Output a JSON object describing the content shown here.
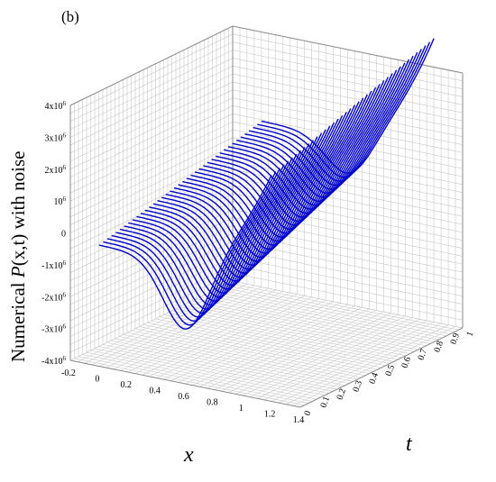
{
  "panel_label": "(b)",
  "chart_data": {
    "type": "surface3d",
    "title": "",
    "xlabel": "x",
    "ylabel": "t",
    "zlabel": "Numerical P(x,t) with noise",
    "zlabel_parts": {
      "prefix": "Numerical ",
      "func": "P",
      "args": "(x,t)",
      "suffix": " with noise"
    },
    "x_range": [
      -0.2,
      1.4
    ],
    "t_range": [
      0,
      1
    ],
    "z_range": [
      -4000000,
      4000000
    ],
    "x_ticks": [
      "-0.2",
      "0",
      "0.2",
      "0.4",
      "0.6",
      "0.8",
      "1",
      "1.2",
      "1.4"
    ],
    "t_ticks": [
      "0",
      "0.1",
      "0.2",
      "0.3",
      "0.4",
      "0.5",
      "0.6",
      "0.7",
      "0.8",
      "0.9",
      "1"
    ],
    "z_ticks": [
      {
        "base": "4x10",
        "exp": "6"
      },
      {
        "base": "3x10",
        "exp": "6"
      },
      {
        "base": "2x10",
        "exp": "6"
      },
      {
        "base": "10",
        "exp": "6"
      },
      {
        "base": "0",
        "exp": ""
      },
      {
        "base": "-1x10",
        "exp": "6"
      },
      {
        "base": "-2x10",
        "exp": "6"
      },
      {
        "base": "-3x10",
        "exp": "6"
      },
      {
        "base": "-4x10",
        "exp": "6"
      }
    ],
    "grid": true,
    "curve_color": "#0000cc",
    "num_curves": 40,
    "surface_samples": [
      {
        "x": 0,
        "t": 0,
        "P": -200000
      },
      {
        "x": 0.6,
        "t": 0,
        "P": -2200000
      },
      {
        "x": 1.2,
        "t": 0,
        "P": 3200000
      },
      {
        "x": 0,
        "t": 1,
        "P": 1200000
      },
      {
        "x": 0.6,
        "t": 1,
        "P": -1000000
      },
      {
        "x": 1.2,
        "t": 1,
        "P": 4000000
      }
    ]
  }
}
